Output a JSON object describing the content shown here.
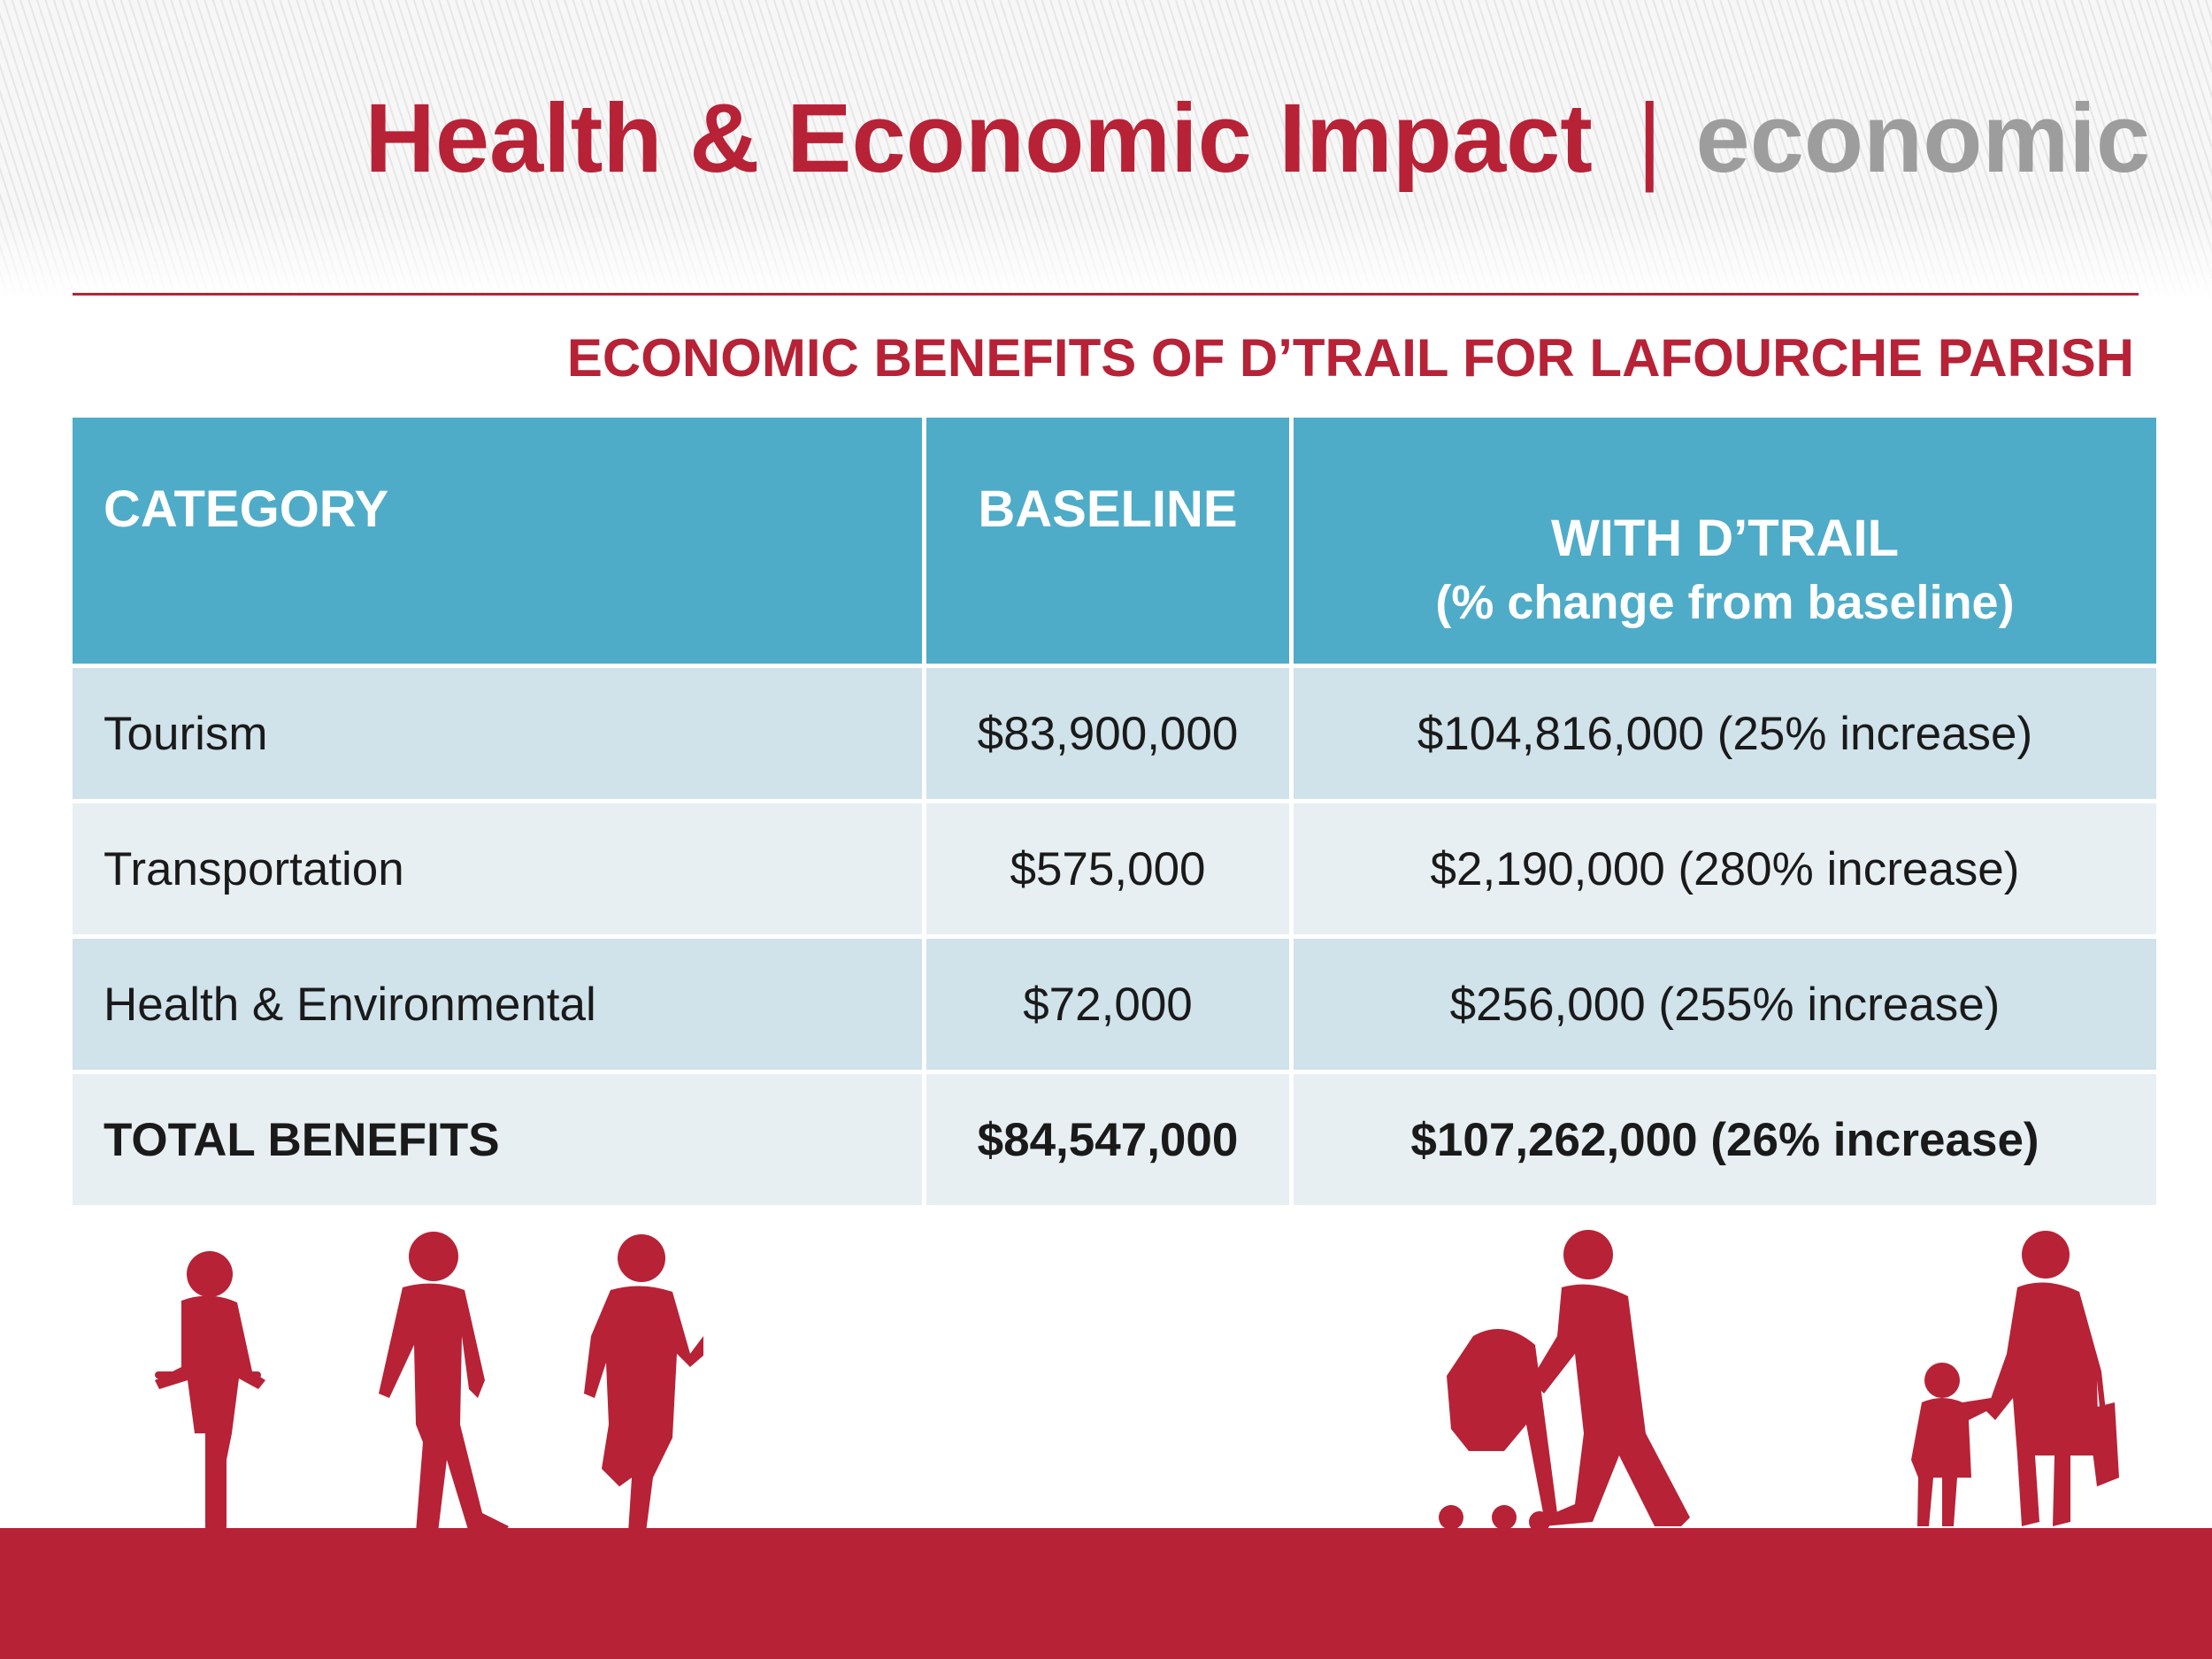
{
  "header": {
    "title_main": "Health & Economic Impact",
    "title_separator": "|",
    "title_section": "economic"
  },
  "table": {
    "title": "ECONOMIC BENEFITS OF D’TRAIL  FOR LAFOURCHE PARISH",
    "columns": {
      "category": "CATEGORY",
      "baseline": "BASELINE",
      "with_trail": "WITH D’TRAIL",
      "with_trail_note": "(% change from baseline)"
    },
    "rows": [
      {
        "category": "Tourism",
        "baseline": "$83,900,000",
        "with_trail": "$104,816,000 (25% increase)"
      },
      {
        "category": "Transportation",
        "baseline": "$575,000",
        "with_trail": "$2,190,000 (280% increase)"
      },
      {
        "category": "Health & Environmental",
        "baseline": "$72,000",
        "with_trail": "$256,000 (255% increase)"
      }
    ],
    "total": {
      "category": "TOTAL BENEFITS",
      "baseline": "$84,547,000",
      "with_trail": "$107,262,000 (26% increase)"
    }
  },
  "colors": {
    "brand_red": "#b72236",
    "header_blue": "#4eacc8",
    "row_dark": "#d0e2ea",
    "row_light": "#e7eff3",
    "subtitle_gray": "#9d9d9d"
  }
}
